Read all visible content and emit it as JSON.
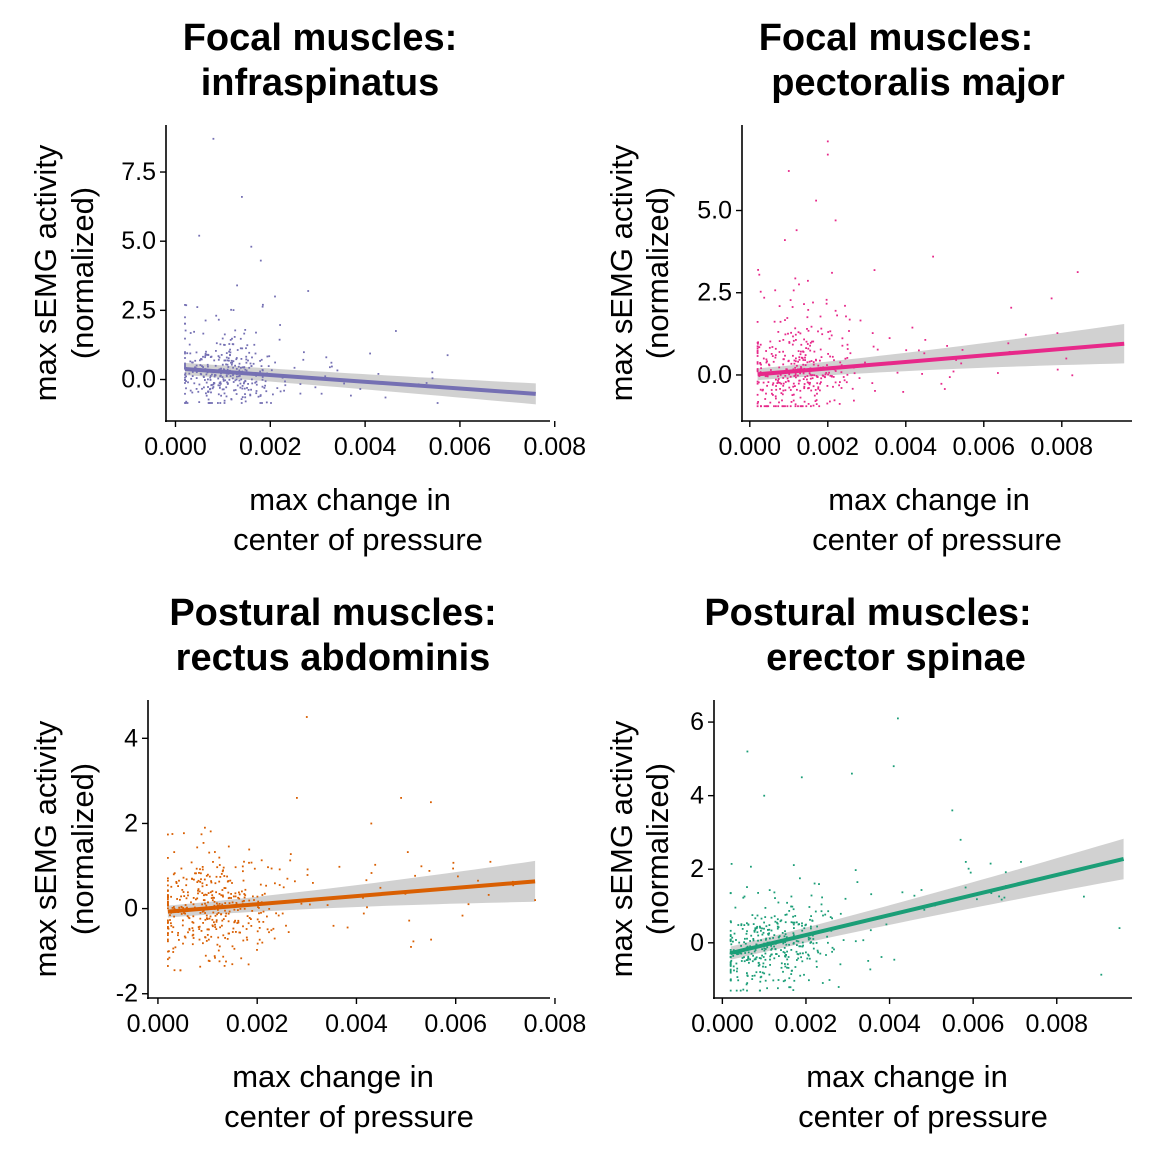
{
  "chart_data": [
    {
      "type": "scatter",
      "title_line1": "Focal muscles:",
      "title_line2": "infraspinatus",
      "xlabel_line1": "max change in",
      "xlabel_line2": "center of pressure",
      "ylabel_line1": "max sEMG activity",
      "ylabel_line2": "(normalized)",
      "color": "#7570B3",
      "xlim": [
        -0.0002,
        0.0079
      ],
      "ylim": [
        -1.5,
        9.2
      ],
      "x_ticks": [
        0,
        0.002,
        0.004,
        0.006,
        0.008
      ],
      "x_tick_labels": [
        "0.000",
        "0.002",
        "0.004",
        "0.006",
        "0.008"
      ],
      "y_ticks": [
        0,
        2.5,
        5,
        7.5
      ],
      "y_tick_labels": [
        "0.0",
        "2.5",
        "5.0",
        "7.5"
      ],
      "fit": {
        "x0": 0.0002,
        "x1": 0.0076,
        "y0": 0.38,
        "y1": -0.52,
        "ci0": 0.22,
        "ci1": 0.38
      },
      "outliers": [
        [
          0.0008,
          8.7
        ],
        [
          0.0014,
          6.6
        ],
        [
          0.0005,
          5.2
        ],
        [
          0.0016,
          4.8
        ],
        [
          0.0018,
          4.3
        ],
        [
          0.0028,
          3.2
        ],
        [
          0.0021,
          3.0
        ],
        [
          0.0013,
          3.4
        ]
      ],
      "cloud": {
        "n": 380,
        "seed": 11,
        "xmin": 0.0002,
        "xmax": 0.0075,
        "xmode": 0.0011,
        "xspread": 0.0008,
        "ymin": -0.85,
        "ymax": 2.7
      }
    },
    {
      "type": "scatter",
      "title_line1": "Focal muscles:",
      "title_line2": "pectoralis major",
      "xlabel_line1": "max change in",
      "xlabel_line2": "center of pressure",
      "ylabel_line1": "max sEMG activity",
      "ylabel_line2": "(normalized)",
      "color": "#E7298A",
      "xlim": [
        -0.0002,
        0.0098
      ],
      "ylim": [
        -1.4,
        7.6
      ],
      "x_ticks": [
        0,
        0.002,
        0.004,
        0.006,
        0.008
      ],
      "x_tick_labels": [
        "0.000",
        "0.002",
        "0.004",
        "0.006",
        "0.008"
      ],
      "y_ticks": [
        0,
        2.5,
        5
      ],
      "y_tick_labels": [
        "0.0",
        "2.5",
        "5.0"
      ],
      "fit": {
        "x0": 0.0002,
        "x1": 0.0096,
        "y0": 0.02,
        "y1": 0.95,
        "ci0": 0.18,
        "ci1": 0.6
      },
      "outliers": [
        [
          0.002,
          7.1
        ],
        [
          0.002,
          6.7
        ],
        [
          0.001,
          6.2
        ],
        [
          0.0017,
          5.3
        ],
        [
          0.0022,
          4.7
        ],
        [
          0.0047,
          3.6
        ],
        [
          0.0012,
          4.4
        ],
        [
          0.0009,
          4.1
        ]
      ],
      "cloud": {
        "n": 400,
        "seed": 23,
        "xmin": 0.0002,
        "xmax": 0.0095,
        "xmode": 0.0012,
        "xspread": 0.0009,
        "ymin": -0.95,
        "ymax": 3.2
      }
    },
    {
      "type": "scatter",
      "title_line1": "Postural muscles:",
      "title_line2": "rectus abdominis",
      "xlabel_line1": "max change in",
      "xlabel_line2": "center of pressure",
      "ylabel_line1": "max sEMG activity",
      "ylabel_line2": "(normalized)",
      "color": "#D95F02",
      "xlim": [
        -0.0002,
        0.0079
      ],
      "ylim": [
        -2.1,
        4.9
      ],
      "x_ticks": [
        0,
        0.002,
        0.004,
        0.006,
        0.008
      ],
      "x_tick_labels": [
        "0.000",
        "0.002",
        "0.004",
        "0.006",
        "0.008"
      ],
      "y_ticks": [
        -2,
        0,
        2,
        4
      ],
      "y_tick_labels": [
        "-2",
        "0",
        "2",
        "4"
      ],
      "fit": {
        "x0": 0.0002,
        "x1": 0.0076,
        "y0": -0.07,
        "y1": 0.64,
        "ci0": 0.14,
        "ci1": 0.48
      },
      "outliers": [
        [
          0.003,
          4.5
        ],
        [
          0.0055,
          2.5
        ],
        [
          0.0049,
          2.6
        ],
        [
          0.0028,
          2.6
        ],
        [
          0.0043,
          2.0
        ],
        [
          0.0067,
          1.1
        ],
        [
          0.0076,
          0.2
        ],
        [
          0.0051,
          -0.9
        ]
      ],
      "cloud": {
        "n": 440,
        "seed": 37,
        "xmin": 0.0002,
        "xmax": 0.0072,
        "xmode": 0.0011,
        "xspread": 0.0009,
        "ymin": -1.45,
        "ymax": 1.9
      }
    },
    {
      "type": "scatter",
      "title_line1": "Postural muscles:",
      "title_line2": "erector spinae",
      "xlabel_line1": "max change in",
      "xlabel_line2": "center of pressure",
      "ylabel_line1": "max sEMG activity",
      "ylabel_line2": "(normalized)",
      "color": "#1B9E77",
      "xlim": [
        -0.0002,
        0.0098
      ],
      "ylim": [
        -1.5,
        6.6
      ],
      "x_ticks": [
        0,
        0.002,
        0.004,
        0.006,
        0.008
      ],
      "x_tick_labels": [
        "0.000",
        "0.002",
        "0.004",
        "0.006",
        "0.008"
      ],
      "y_ticks": [
        0,
        2,
        4,
        6
      ],
      "y_tick_labels": [
        "0",
        "2",
        "4",
        "6"
      ],
      "fit": {
        "x0": 0.0002,
        "x1": 0.0096,
        "y0": -0.28,
        "y1": 2.28,
        "ci0": 0.18,
        "ci1": 0.55
      },
      "outliers": [
        [
          0.0042,
          6.1
        ],
        [
          0.0006,
          5.2
        ],
        [
          0.0041,
          4.8
        ],
        [
          0.0031,
          4.6
        ],
        [
          0.0019,
          4.5
        ],
        [
          0.001,
          4.0
        ],
        [
          0.0055,
          3.6
        ],
        [
          0.0057,
          2.8
        ],
        [
          0.0095,
          0.4
        ]
      ],
      "cloud": {
        "n": 420,
        "seed": 53,
        "xmin": 0.0002,
        "xmax": 0.0093,
        "xmode": 0.0012,
        "xspread": 0.001,
        "ymin": -1.3,
        "ymax": 2.2
      }
    }
  ]
}
